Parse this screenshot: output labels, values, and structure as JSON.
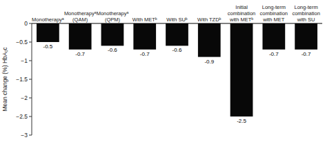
{
  "chart_data": {
    "type": "bar",
    "categories": [
      "Monotherapyᵃ",
      "Monotherapyᵃ\n(QAM)",
      "Monotherapyᵃ\n(QPM)",
      "With METᵇ",
      "With SUᵇ",
      "With TZDᵇ",
      "Initial\ncombination\nwith METᵇ",
      "Long-term\ncombination\nwith MET",
      "Long-term\ncombination\nwith SU"
    ],
    "values": [
      -0.5,
      -0.7,
      -0.6,
      -0.7,
      -0.6,
      -0.9,
      -2.5,
      -0.7,
      -0.7
    ],
    "color": "#080808",
    "ylabel": "Mean change (%) HbA₁c",
    "ylim": [
      -3,
      0.0
    ],
    "yticks": [
      0,
      {
        "value": -0.5,
        "label": "−0.5"
      },
      {
        "value": -1.0,
        "label": "−1"
      },
      {
        "value": -1.5,
        "label": "−1.5"
      },
      {
        "value": -2.0,
        "label": "−2"
      },
      {
        "value": -2.5,
        "label": "−2.5"
      },
      {
        "value": -3.0,
        "label": "−3"
      }
    ],
    "data_labels": true,
    "grid": false
  }
}
